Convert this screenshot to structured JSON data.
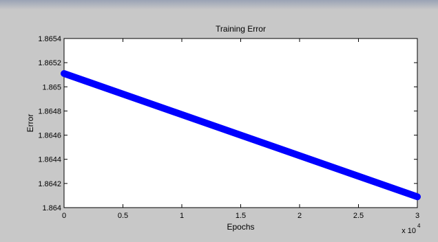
{
  "chart_data": {
    "type": "line",
    "title": "Training Error",
    "xlabel": "Epochs",
    "ylabel": "Error",
    "x_multiplier_label": "x 10",
    "x_multiplier_exponent": "4",
    "xlim": [
      0,
      3
    ],
    "ylim": [
      1.864,
      1.8654
    ],
    "x_ticks": [
      0,
      0.5,
      1,
      1.5,
      2,
      2.5,
      3
    ],
    "x_tick_labels": [
      "0",
      "0.5",
      "1",
      "1.5",
      "2",
      "2.5",
      "3"
    ],
    "y_ticks": [
      1.864,
      1.8642,
      1.8644,
      1.8646,
      1.8648,
      1.865,
      1.8652,
      1.8654
    ],
    "y_tick_labels": [
      "1.864",
      "1.8642",
      "1.8644",
      "1.8646",
      "1.8648",
      "1.865",
      "1.8652",
      "1.8654"
    ],
    "grid": false,
    "series": [
      {
        "color": "#0000ff",
        "x": [
          0,
          3
        ],
        "y": [
          1.86511,
          1.86409
        ]
      }
    ]
  }
}
